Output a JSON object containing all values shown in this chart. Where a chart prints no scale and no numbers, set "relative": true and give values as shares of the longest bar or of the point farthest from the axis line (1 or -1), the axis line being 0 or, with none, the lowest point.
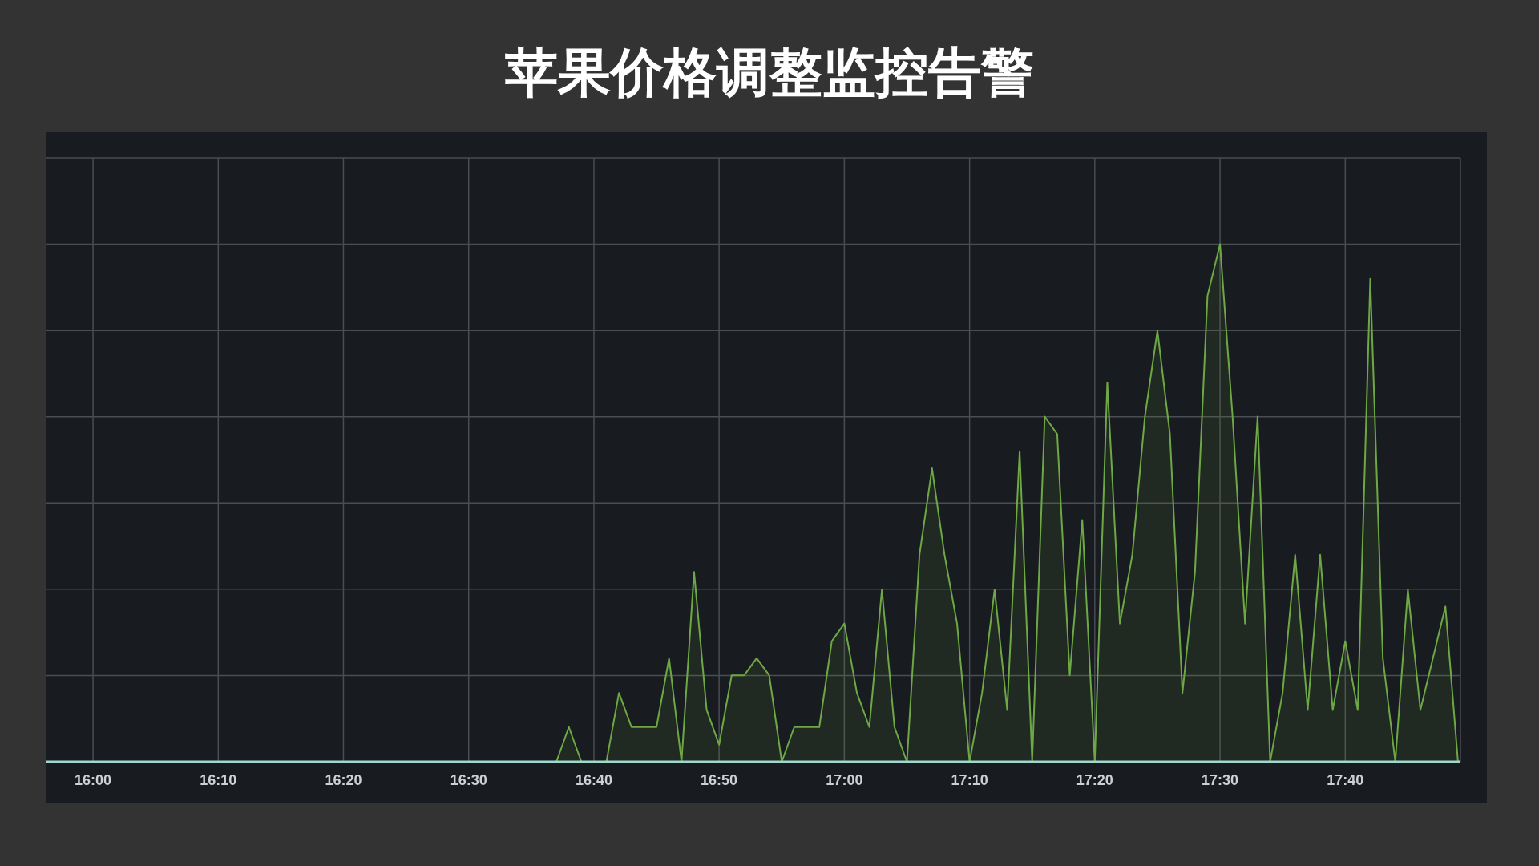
{
  "chart_data": {
    "type": "area",
    "title": "苹果价格调整监控告警",
    "relative": true,
    "grid": true,
    "xlim": [
      15.937,
      17.82
    ],
    "xticks": [
      {
        "value": 16,
        "label": "16:00"
      },
      {
        "value": 16.1667,
        "label": "16:10"
      },
      {
        "value": 16.3333,
        "label": "16:20"
      },
      {
        "value": 16.5,
        "label": "16:30"
      },
      {
        "value": 16.6667,
        "label": "16:40"
      },
      {
        "value": 16.8333,
        "label": "16:50"
      },
      {
        "value": 17,
        "label": "17:00"
      },
      {
        "value": 17.1667,
        "label": "17:10"
      },
      {
        "value": 17.3333,
        "label": "17:20"
      },
      {
        "value": 17.5,
        "label": "17:30"
      },
      {
        "value": 17.6667,
        "label": "17:40"
      }
    ],
    "x": [
      16.6167,
      16.6333,
      16.65,
      16.6667,
      16.6833,
      16.7,
      16.7167,
      16.7333,
      16.75,
      16.7667,
      16.7833,
      16.8,
      16.8167,
      16.8333,
      16.85,
      16.8667,
      16.8833,
      16.9,
      16.9167,
      16.9333,
      16.95,
      16.9667,
      16.9833,
      17,
      17.0167,
      17.0333,
      17.05,
      17.0667,
      17.0833,
      17.1,
      17.1167,
      17.1333,
      17.15,
      17.1667,
      17.1833,
      17.2,
      17.2167,
      17.2333,
      17.25,
      17.2667,
      17.2833,
      17.3,
      17.3167,
      17.3333,
      17.35,
      17.3667,
      17.3833,
      17.4,
      17.4167,
      17.4333,
      17.45,
      17.4667,
      17.4833,
      17.5,
      17.5167,
      17.5333,
      17.55,
      17.5667,
      17.5833,
      17.6,
      17.6167,
      17.6333,
      17.65,
      17.6667,
      17.6833,
      17.7,
      17.7167,
      17.7333,
      17.75,
      17.7667,
      17.8,
      17.8167
    ],
    "series": [
      {
        "color": "#6ea845",
        "values": [
          0,
          0.067,
          0,
          0,
          0,
          0.133,
          0.067,
          0.067,
          0.067,
          0.2,
          0,
          0.367,
          0.1,
          0.033,
          0.167,
          0.167,
          0.2,
          0.167,
          0,
          0.067,
          0.067,
          0.067,
          0.233,
          0.267,
          0.133,
          0.067,
          0.333,
          0.067,
          0,
          0.4,
          0.567,
          0.4,
          0.267,
          0,
          0.133,
          0.333,
          0.1,
          0.6,
          0,
          0.667,
          0.633,
          0.167,
          0.467,
          0,
          0.733,
          0.267,
          0.4,
          0.667,
          0.833,
          0.633,
          0.133,
          0.367,
          0.9,
          1,
          0.667,
          0.267,
          0.667,
          0,
          0.133,
          0.4,
          0.1,
          0.4,
          0.1,
          0.233,
          0.1,
          0.933,
          0.2,
          0,
          0.333,
          0.1,
          0.3,
          0
        ]
      }
    ]
  }
}
